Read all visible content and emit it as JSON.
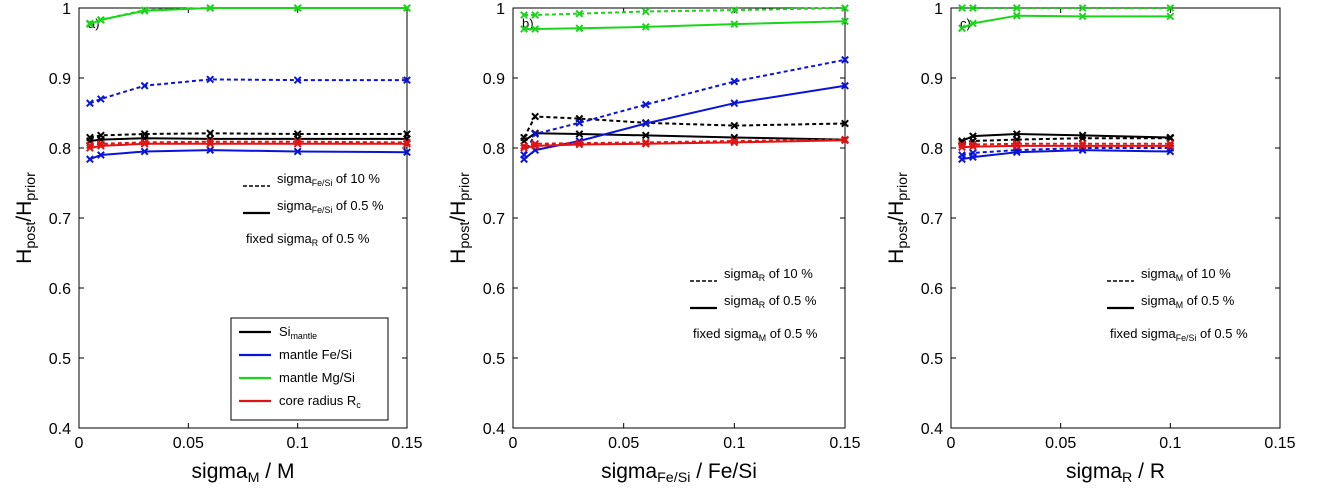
{
  "colors": {
    "Si_mantle": "#000000",
    "mantle_FeSi": "#0a14d8",
    "mantle_MgSi": "#19d619",
    "core_radius": "#e01414"
  },
  "legend": {
    "items": [
      {
        "key": "Si_mantle",
        "main": "Si",
        "sub": "mantle",
        "tail": ""
      },
      {
        "key": "mantle_FeSi",
        "main": "mantle Fe/Si",
        "sub": "",
        "tail": ""
      },
      {
        "key": "mantle_MgSi",
        "main": "mantle Mg/Si",
        "sub": "",
        "tail": ""
      },
      {
        "key": "core_radius",
        "main": "core radius R",
        "sub": "c",
        "tail": ""
      }
    ]
  },
  "chart_data": [
    {
      "type": "line",
      "panel_label": "a)",
      "xlabel": {
        "main": "sigma",
        "sub": "M",
        "tail": " / M"
      },
      "ylabel": {
        "main": "H",
        "sub1": "post",
        "mid": "/H",
        "sub2": "prior"
      },
      "xlim": [
        0,
        0.15
      ],
      "ylim": [
        0.4,
        1
      ],
      "xticks": [
        "0",
        "0.05",
        "0.1",
        "0.15"
      ],
      "yticks": [
        "0.4",
        "0.5",
        "0.6",
        "0.7",
        "0.8",
        "0.9",
        "1"
      ],
      "x": [
        0.005,
        0.01,
        0.03,
        0.06,
        0.1,
        0.15
      ],
      "series": [
        {
          "key": "Si_mantle",
          "style": "dashed",
          "values": [
            0.815,
            0.818,
            0.82,
            0.821,
            0.82,
            0.82
          ]
        },
        {
          "key": "Si_mantle",
          "style": "solid",
          "values": [
            0.81,
            0.812,
            0.814,
            0.813,
            0.813,
            0.813
          ]
        },
        {
          "key": "mantle_FeSi",
          "style": "dashed",
          "values": [
            0.864,
            0.87,
            0.889,
            0.898,
            0.897,
            0.897
          ]
        },
        {
          "key": "mantle_FeSi",
          "style": "solid",
          "values": [
            0.784,
            0.79,
            0.795,
            0.797,
            0.795,
            0.794
          ]
        },
        {
          "key": "mantle_MgSi",
          "style": "dashed",
          "values": [
            0.978,
            0.983,
            0.997,
            1.0,
            1.0,
            1.0
          ]
        },
        {
          "key": "mantle_MgSi",
          "style": "solid",
          "values": [
            0.977,
            0.983,
            0.996,
            1.0,
            1.0,
            1.0
          ]
        },
        {
          "key": "core_radius",
          "style": "dashed",
          "values": [
            0.804,
            0.806,
            0.808,
            0.809,
            0.809,
            0.808
          ]
        },
        {
          "key": "core_radius",
          "style": "solid",
          "values": [
            0.8,
            0.803,
            0.806,
            0.806,
            0.806,
            0.806
          ]
        }
      ],
      "annotation": {
        "dashed": {
          "main": "sigma",
          "sub": "Fe/Si",
          "tail": " of 10 %"
        },
        "solid": {
          "main": "sigma",
          "sub": "Fe/Si",
          "tail": " of 0.5 %"
        },
        "fixed": {
          "main": "fixed sigma",
          "sub": "R",
          "tail": " of 0.5 %"
        }
      }
    },
    {
      "type": "line",
      "panel_label": "b)",
      "xlabel": {
        "main": "sigma",
        "sub": "Fe/Si",
        "tail": " / Fe/Si"
      },
      "ylabel": {
        "main": "H",
        "sub1": "post",
        "mid": "/H",
        "sub2": "prior"
      },
      "xlim": [
        0,
        0.15
      ],
      "ylim": [
        0.4,
        1
      ],
      "xticks": [
        "0",
        "0.05",
        "0.1",
        "0.15"
      ],
      "yticks": [
        "0.4",
        "0.5",
        "0.6",
        "0.7",
        "0.8",
        "0.9",
        "1"
      ],
      "x": [
        0.005,
        0.01,
        0.03,
        0.06,
        0.1,
        0.15
      ],
      "series": [
        {
          "key": "Si_mantle",
          "style": "dashed",
          "values": [
            0.815,
            0.845,
            0.842,
            0.836,
            0.832,
            0.835
          ]
        },
        {
          "key": "Si_mantle",
          "style": "solid",
          "values": [
            0.81,
            0.821,
            0.82,
            0.818,
            0.815,
            0.812
          ]
        },
        {
          "key": "mantle_FeSi",
          "style": "dashed",
          "values": [
            0.79,
            0.82,
            0.836,
            0.862,
            0.895,
            0.926
          ]
        },
        {
          "key": "mantle_FeSi",
          "style": "solid",
          "values": [
            0.784,
            0.797,
            0.81,
            0.835,
            0.864,
            0.889
          ]
        },
        {
          "key": "mantle_MgSi",
          "style": "dashed",
          "values": [
            0.99,
            0.99,
            0.992,
            0.995,
            0.997,
            1.0
          ]
        },
        {
          "key": "mantle_MgSi",
          "style": "solid",
          "values": [
            0.97,
            0.97,
            0.971,
            0.973,
            0.977,
            0.981
          ]
        },
        {
          "key": "core_radius",
          "style": "dashed",
          "values": [
            0.803,
            0.806,
            0.807,
            0.808,
            0.81,
            0.812
          ]
        },
        {
          "key": "core_radius",
          "style": "solid",
          "values": [
            0.8,
            0.803,
            0.805,
            0.806,
            0.808,
            0.811
          ]
        }
      ],
      "annotation": {
        "dashed": {
          "main": "sigma",
          "sub": "R",
          "tail": " of 10 %"
        },
        "solid": {
          "main": "sigma",
          "sub": "R",
          "tail": " of 0.5 %"
        },
        "fixed": {
          "main": "fixed sigma",
          "sub": "M",
          "tail": " of 0.5 %"
        }
      }
    },
    {
      "type": "line",
      "panel_label": "c)",
      "xlabel": {
        "main": "sigma",
        "sub": "R",
        "tail": " / R"
      },
      "ylabel": {
        "main": "H",
        "sub1": "post",
        "mid": "/H",
        "sub2": "prior"
      },
      "xlim": [
        0,
        0.15
      ],
      "ylim": [
        0.4,
        1
      ],
      "xticks": [
        "0",
        "0.05",
        "0.1",
        "0.15"
      ],
      "yticks": [
        "0.4",
        "0.5",
        "0.6",
        "0.7",
        "0.8",
        "0.9",
        "1"
      ],
      "x": [
        0.005,
        0.01,
        0.03,
        0.06,
        0.1
      ],
      "series": [
        {
          "key": "Si_mantle",
          "style": "dashed",
          "values": [
            0.808,
            0.81,
            0.812,
            0.814,
            0.814
          ]
        },
        {
          "key": "Si_mantle",
          "style": "solid",
          "values": [
            0.81,
            0.817,
            0.82,
            0.818,
            0.815
          ]
        },
        {
          "key": "mantle_FeSi",
          "style": "dashed",
          "values": [
            0.79,
            0.793,
            0.797,
            0.8,
            0.8
          ]
        },
        {
          "key": "mantle_FeSi",
          "style": "solid",
          "values": [
            0.784,
            0.787,
            0.794,
            0.797,
            0.795
          ]
        },
        {
          "key": "mantle_MgSi",
          "style": "dashed",
          "values": [
            1.0,
            1.0,
            1.0,
            1.0,
            1.0
          ]
        },
        {
          "key": "mantle_MgSi",
          "style": "solid",
          "values": [
            0.971,
            0.978,
            0.989,
            0.988,
            0.988
          ]
        },
        {
          "key": "core_radius",
          "style": "dashed",
          "values": [
            0.805,
            0.805,
            0.806,
            0.806,
            0.806
          ]
        },
        {
          "key": "core_radius",
          "style": "solid",
          "values": [
            0.801,
            0.802,
            0.803,
            0.803,
            0.803
          ]
        }
      ],
      "annotation": {
        "dashed": {
          "main": "sigma",
          "sub": "M",
          "tail": " of 10 %"
        },
        "solid": {
          "main": "sigma",
          "sub": "M",
          "tail": " of 0.5 %"
        },
        "fixed": {
          "main": "fixed sigma",
          "sub": "Fe/Si",
          "tail": " of 0.5 %"
        }
      }
    }
  ]
}
